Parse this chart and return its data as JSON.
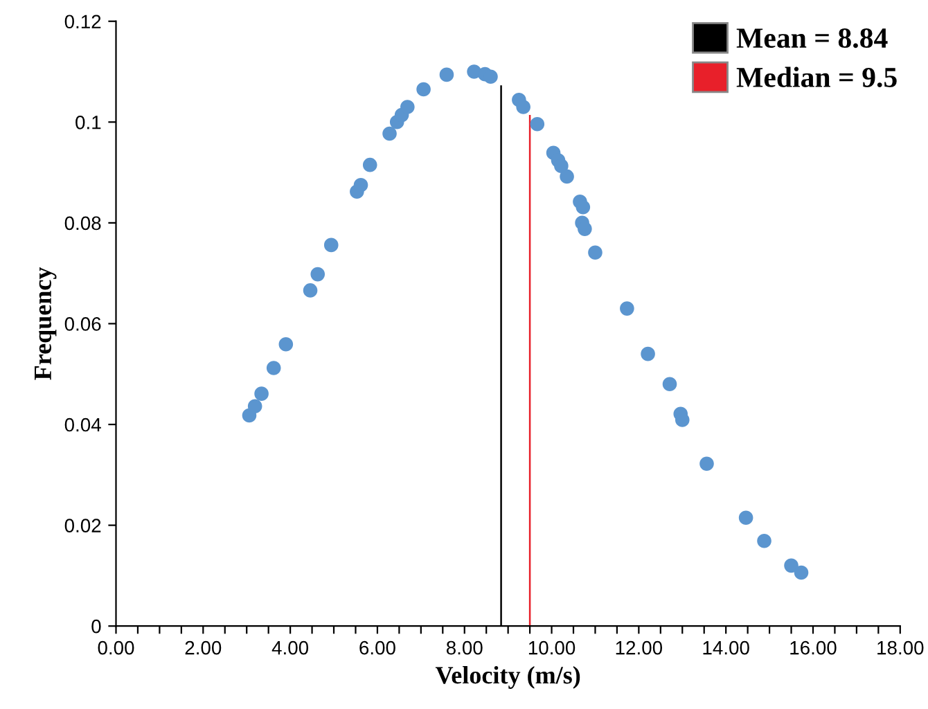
{
  "chart_data": {
    "type": "scatter",
    "xlabel": "Velocity (m/s)",
    "ylabel": "Frequency",
    "series": [
      {
        "color": "#5b95cf",
        "x": [
          3.06,
          3.19,
          3.34,
          3.62,
          3.9,
          4.46,
          4.63,
          4.94,
          5.53,
          5.62,
          5.83,
          6.28,
          6.45,
          6.56,
          6.69,
          7.06,
          7.59,
          8.22,
          8.47,
          8.6,
          9.25,
          9.35,
          9.67,
          10.04,
          10.15,
          10.22,
          10.35,
          10.65,
          10.72,
          10.7,
          10.76,
          11.0,
          11.73,
          12.21,
          12.71,
          12.96,
          13.0,
          13.56,
          14.46,
          14.88,
          15.5,
          15.73
        ],
        "values": [
          0.0418,
          0.0436,
          0.0461,
          0.0512,
          0.0559,
          0.0666,
          0.0698,
          0.0756,
          0.0862,
          0.0875,
          0.0915,
          0.0977,
          0.1,
          0.1014,
          0.103,
          0.1065,
          0.1094,
          0.11,
          0.1095,
          0.109,
          0.1044,
          0.103,
          0.0996,
          0.0939,
          0.0924,
          0.0913,
          0.0892,
          0.0842,
          0.0831,
          0.08,
          0.0788,
          0.0741,
          0.063,
          0.054,
          0.048,
          0.0421,
          0.0409,
          0.0322,
          0.0215,
          0.0169,
          0.012,
          0.0106
        ]
      }
    ],
    "ref_lines": [
      {
        "axis": "x",
        "value": 8.84,
        "label": "Mean = 8.84",
        "color": "#000000"
      },
      {
        "axis": "x",
        "value": 9.5,
        "label": "Median = 9.5",
        "color": "#e8202a"
      }
    ],
    "xlim": [
      0,
      18
    ],
    "ylim": [
      0,
      0.12
    ],
    "xticks": [
      {
        "value": 0,
        "label": "0.00"
      },
      {
        "value": 0.5,
        "label": null
      },
      {
        "value": 1,
        "label": null
      },
      {
        "value": 1.5,
        "label": null
      },
      {
        "value": 2,
        "label": "2.00"
      },
      {
        "value": 2.5,
        "label": null
      },
      {
        "value": 3,
        "label": null
      },
      {
        "value": 3.5,
        "label": null
      },
      {
        "value": 4,
        "label": "4.00"
      },
      {
        "value": 4.5,
        "label": null
      },
      {
        "value": 5,
        "label": null
      },
      {
        "value": 5.5,
        "label": null
      },
      {
        "value": 6,
        "label": "6.00"
      },
      {
        "value": 6.5,
        "label": null
      },
      {
        "value": 7,
        "label": null
      },
      {
        "value": 7.5,
        "label": null
      },
      {
        "value": 8,
        "label": "8.00"
      },
      {
        "value": 8.5,
        "label": null
      },
      {
        "value": 9,
        "label": null
      },
      {
        "value": 9.5,
        "label": null
      },
      {
        "value": 10,
        "label": "10.00"
      },
      {
        "value": 10.5,
        "label": null
      },
      {
        "value": 11,
        "label": null
      },
      {
        "value": 11.5,
        "label": null
      },
      {
        "value": 12,
        "label": "12.00"
      },
      {
        "value": 12.5,
        "label": null
      },
      {
        "value": 13,
        "label": null
      },
      {
        "value": 13.5,
        "label": null
      },
      {
        "value": 14,
        "label": "14.00"
      },
      {
        "value": 14.5,
        "label": null
      },
      {
        "value": 15,
        "label": null
      },
      {
        "value": 15.5,
        "label": null
      },
      {
        "value": 16,
        "label": "16.00"
      },
      {
        "value": 16.5,
        "label": null
      },
      {
        "value": 17,
        "label": null
      },
      {
        "value": 17.5,
        "label": null
      },
      {
        "value": 18,
        "label": "18.00"
      }
    ],
    "yticks": [
      0,
      0.02,
      0.04,
      0.06,
      0.08,
      0.1,
      0.12
    ],
    "marker": "circle",
    "grid": false,
    "legend": "top right"
  }
}
